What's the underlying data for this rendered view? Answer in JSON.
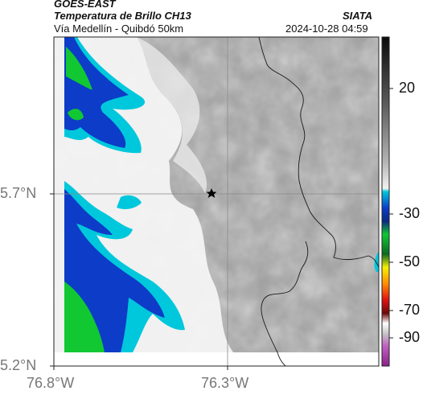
{
  "header": {
    "satellite": "GOES-EAST",
    "product": "Temperatura de Brillo CH13",
    "region": "Vía Medellín - Quibdó 50km",
    "agency": "SIATA",
    "datetime": "2024-10-28 04:59"
  },
  "map": {
    "lat_ticks": [
      "5.7°N",
      "5.2°N"
    ],
    "lon_ticks": [
      "76.8°W",
      "76.3°W"
    ],
    "marker": "star-icon"
  },
  "colorbar": {
    "ticks": [
      "20",
      "-30",
      "-50",
      "-70",
      "-90"
    ],
    "colors": {
      "warm_top": "#0a0a0a",
      "grey_mid": "#9a9a9a",
      "white": "#ffffff",
      "cyan": "#00c8dc",
      "blue": "#0c3cc8",
      "green": "#11c833",
      "yellow": "#f5f000",
      "orange": "#ff8c00",
      "red": "#e01010",
      "dark_red": "#6a0a0a",
      "magenta": "#c060c0"
    }
  }
}
